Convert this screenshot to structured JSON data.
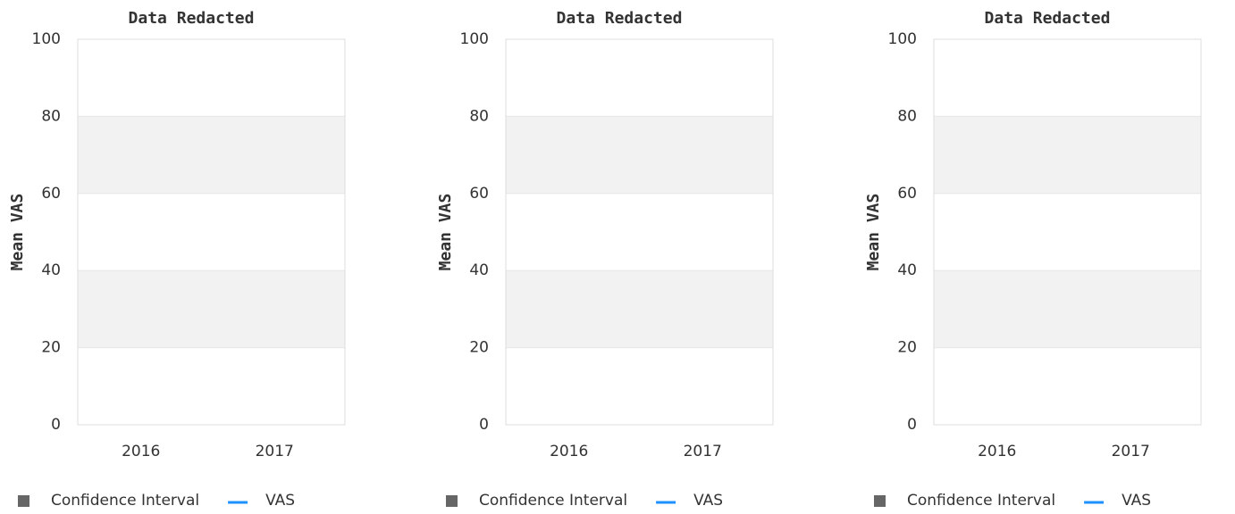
{
  "chart_data": [
    {
      "type": "line",
      "title": "Data Redacted",
      "y_label": "Mean VAS",
      "categories": [
        "2016",
        "2017"
      ],
      "series": [
        {
          "name": "Confidence Interval",
          "color": "#666666",
          "values": [
            null,
            null
          ]
        },
        {
          "name": "VAS",
          "color": "#1e90ff",
          "values": [
            null,
            null
          ]
        }
      ],
      "ylim": [
        0,
        100
      ],
      "yticks": [
        0,
        20,
        40,
        60,
        80,
        100
      ],
      "grid": true
    },
    {
      "type": "line",
      "title": "Data Redacted",
      "y_label": "Mean VAS",
      "categories": [
        "2016",
        "2017"
      ],
      "series": [
        {
          "name": "Confidence Interval",
          "color": "#666666",
          "values": [
            null,
            null
          ]
        },
        {
          "name": "VAS",
          "color": "#1e90ff",
          "values": [
            null,
            null
          ]
        }
      ],
      "ylim": [
        0,
        100
      ],
      "yticks": [
        0,
        20,
        40,
        60,
        80,
        100
      ],
      "grid": true
    },
    {
      "type": "line",
      "title": "Data Redacted",
      "y_label": "Mean VAS",
      "categories": [
        "2016",
        "2017"
      ],
      "series": [
        {
          "name": "Confidence Interval",
          "color": "#666666",
          "values": [
            null,
            null
          ]
        },
        {
          "name": "VAS",
          "color": "#1e90ff",
          "values": [
            null,
            null
          ]
        }
      ],
      "ylim": [
        0,
        100
      ],
      "yticks": [
        0,
        20,
        40,
        60,
        80,
        100
      ],
      "grid": true
    }
  ]
}
